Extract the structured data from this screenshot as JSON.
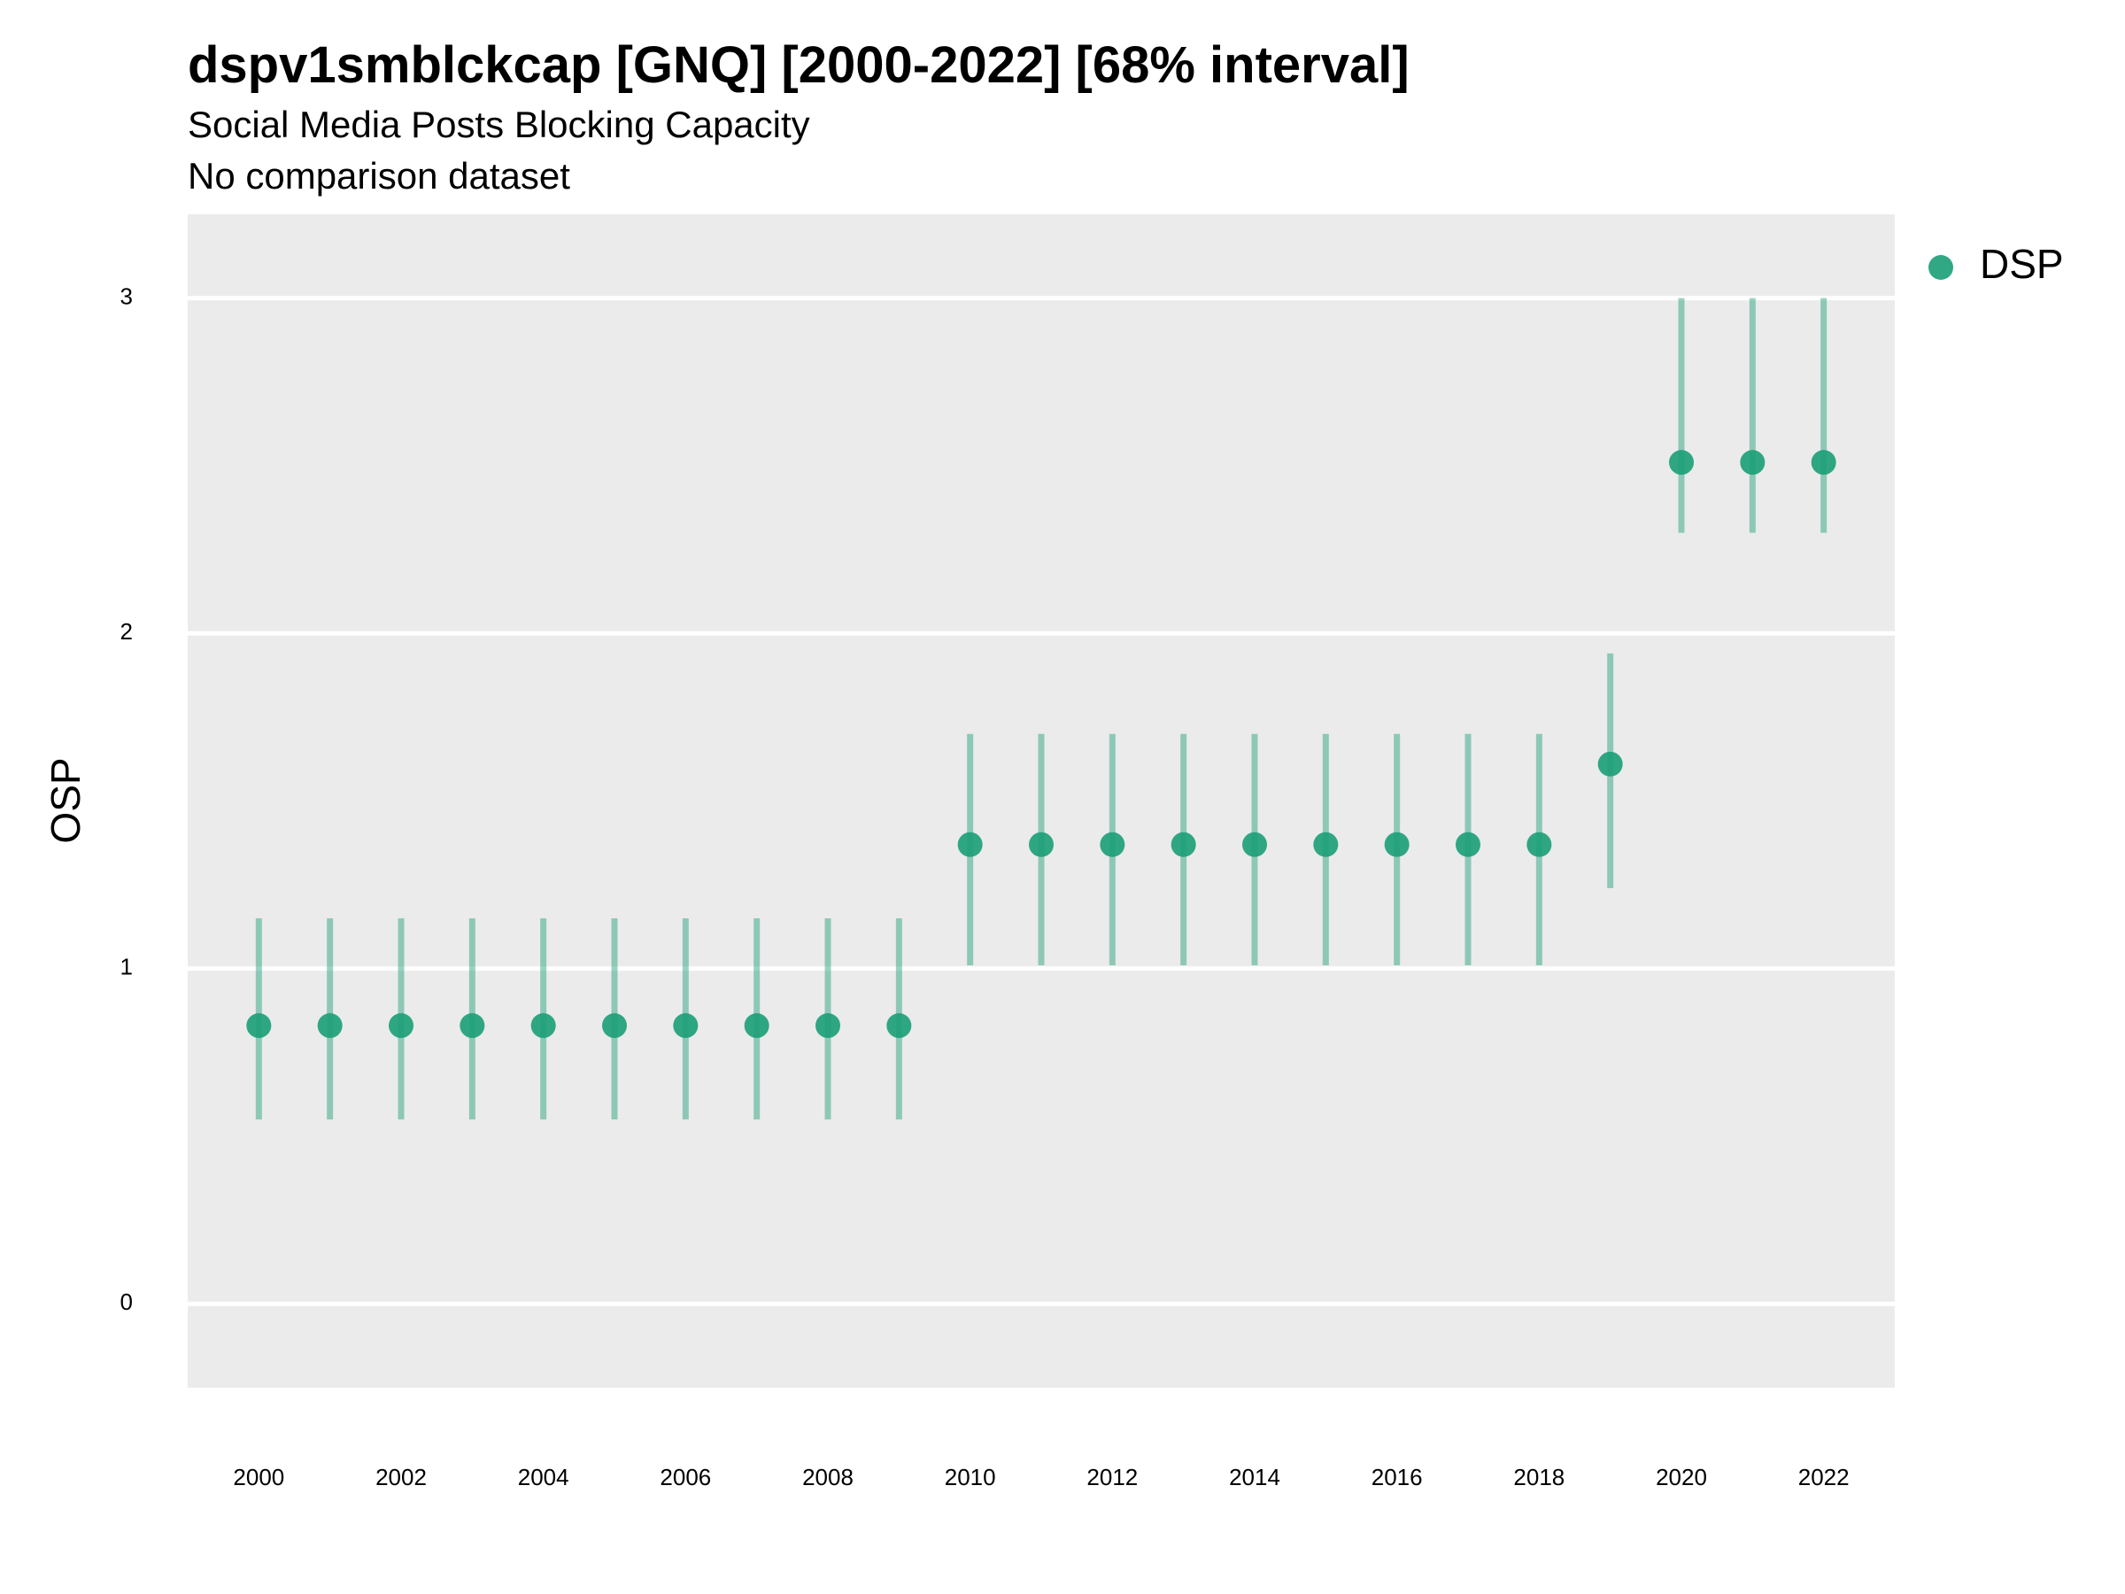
{
  "chart_data": {
    "type": "scatter",
    "title": "dspv1smblckcap [GNQ] [2000-2022] [68% interval]",
    "subtitle": "Social Media Posts Blocking Capacity",
    "caption_line": "No comparison dataset",
    "xlabel": "",
    "ylabel": "OSP",
    "x_ticks": [
      2000,
      2002,
      2004,
      2006,
      2008,
      2010,
      2012,
      2014,
      2016,
      2018,
      2020,
      2022
    ],
    "y_ticks": [
      0,
      1,
      2,
      3
    ],
    "xlim": [
      1999,
      2023
    ],
    "ylim": [
      -0.25,
      3.25
    ],
    "grid": "major y",
    "legend_position": "right",
    "series": [
      {
        "name": "DSP",
        "color": "#1b9e77",
        "x": [
          2000,
          2001,
          2002,
          2003,
          2004,
          2005,
          2006,
          2007,
          2008,
          2009,
          2010,
          2011,
          2012,
          2013,
          2014,
          2015,
          2016,
          2017,
          2018,
          2019,
          2020,
          2021,
          2022
        ],
        "y": [
          0.83,
          0.83,
          0.83,
          0.83,
          0.83,
          0.83,
          0.83,
          0.83,
          0.83,
          0.83,
          1.37,
          1.37,
          1.37,
          1.37,
          1.37,
          1.37,
          1.37,
          1.37,
          1.37,
          1.61,
          2.51,
          2.51,
          2.51
        ],
        "lower": [
          0.55,
          0.55,
          0.55,
          0.55,
          0.55,
          0.55,
          0.55,
          0.55,
          0.55,
          0.55,
          1.01,
          1.01,
          1.01,
          1.01,
          1.01,
          1.01,
          1.01,
          1.01,
          1.01,
          1.24,
          2.3,
          2.3,
          2.3
        ],
        "upper": [
          1.15,
          1.15,
          1.15,
          1.15,
          1.15,
          1.15,
          1.15,
          1.15,
          1.15,
          1.15,
          1.7,
          1.7,
          1.7,
          1.7,
          1.7,
          1.7,
          1.7,
          1.7,
          1.7,
          1.94,
          3.0,
          3.0,
          3.0
        ]
      }
    ]
  }
}
